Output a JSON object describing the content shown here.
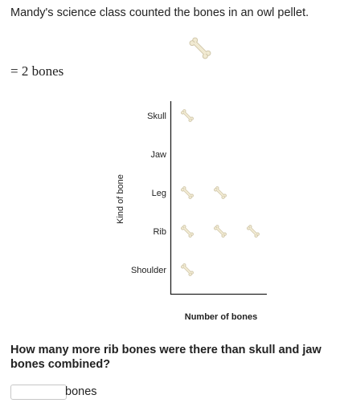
{
  "intro": "Mandy's science class counted the bones in an owl pellet.",
  "key": {
    "icon": "bone-icon",
    "text": "= 2 bones"
  },
  "chart_data": {
    "type": "pictograph",
    "icon": "bone-icon",
    "units_per_icon": 2,
    "categories": [
      "Skull",
      "Jaw",
      "Leg",
      "Rib",
      "Shoulder"
    ],
    "icon_counts": [
      1,
      0,
      2,
      3,
      1
    ],
    "values": [
      2,
      0,
      4,
      6,
      2
    ],
    "xlabel": "Number of bones",
    "ylabel": "Kind of bone",
    "bone_color": "#f1ead2"
  },
  "question": "How many more rib bones were there than skull and jaw bones combined?",
  "answer": {
    "value": "",
    "unit": "bones"
  }
}
